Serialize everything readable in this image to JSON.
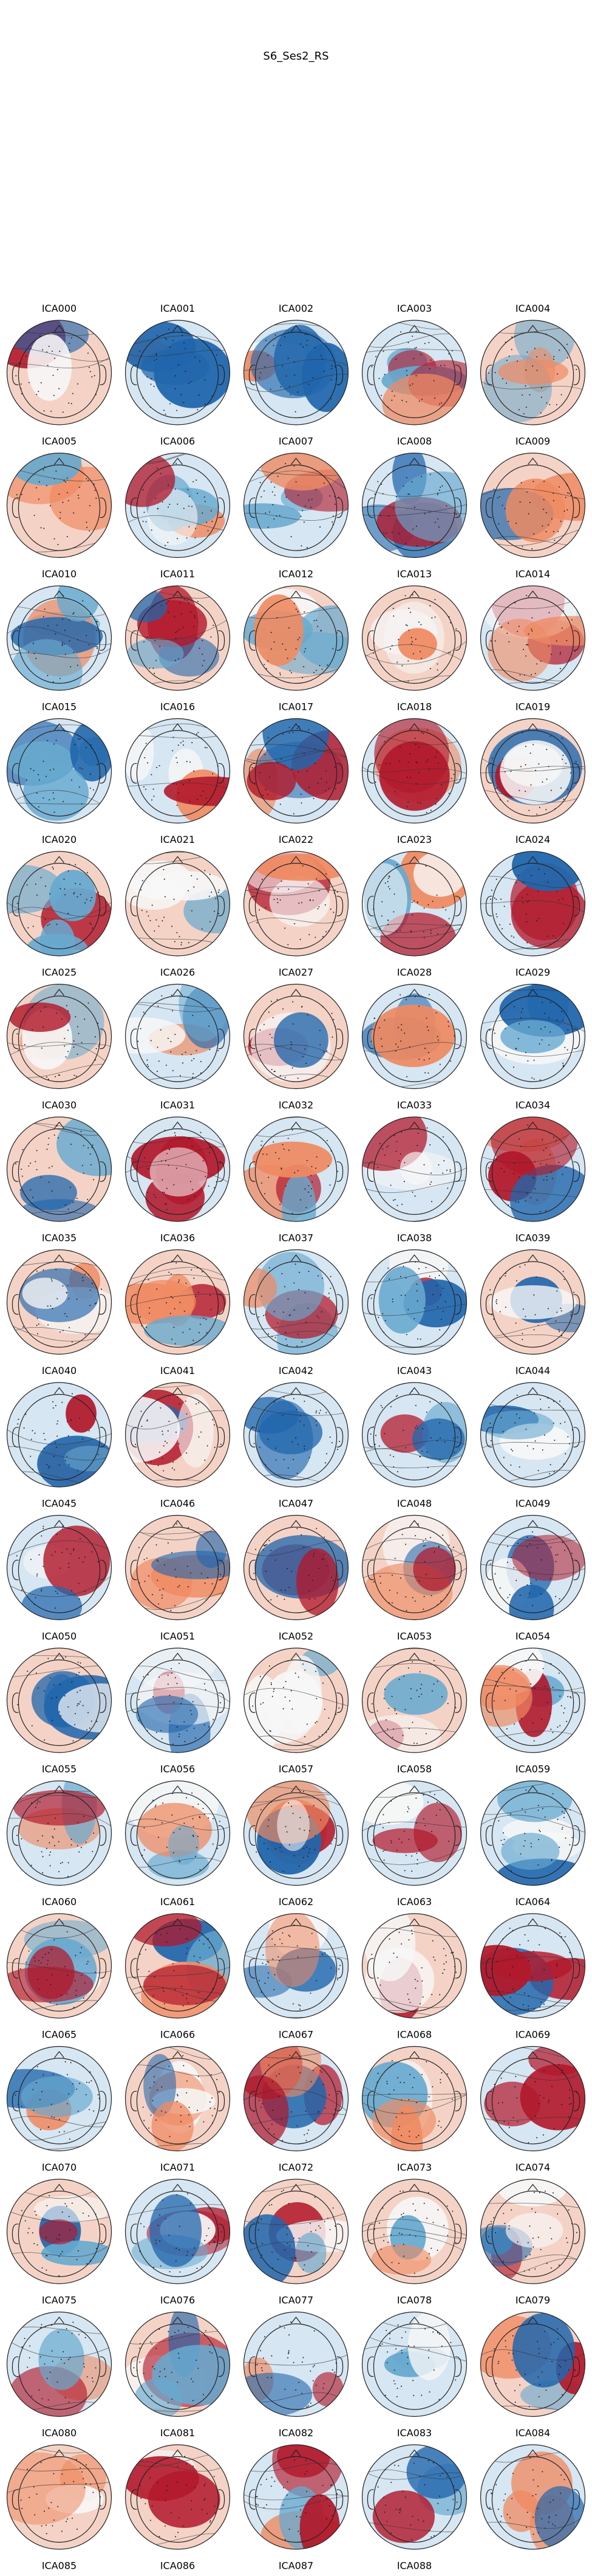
{
  "figure": {
    "title": "S6_Ses2_RS"
  },
  "components": [
    "ICA000",
    "ICA001",
    "ICA002",
    "ICA003",
    "ICA004",
    "ICA005",
    "ICA006",
    "ICA007",
    "ICA008",
    "ICA009",
    "ICA010",
    "ICA011",
    "ICA012",
    "ICA013",
    "ICA014",
    "ICA015",
    "ICA016",
    "ICA017",
    "ICA018",
    "ICA019",
    "ICA020",
    "ICA021",
    "ICA022",
    "ICA023",
    "ICA024",
    "ICA025",
    "ICA026",
    "ICA027",
    "ICA028",
    "ICA029",
    "ICA030",
    "ICA031",
    "ICA032",
    "ICA033",
    "ICA034",
    "ICA035",
    "ICA036",
    "ICA037",
    "ICA038",
    "ICA039",
    "ICA040",
    "ICA041",
    "ICA042",
    "ICA043",
    "ICA044",
    "ICA045",
    "ICA046",
    "ICA047",
    "ICA048",
    "ICA049",
    "ICA050",
    "ICA051",
    "ICA052",
    "ICA053",
    "ICA054",
    "ICA055",
    "ICA056",
    "ICA057",
    "ICA058",
    "ICA059",
    "ICA060",
    "ICA061",
    "ICA062",
    "ICA063",
    "ICA064",
    "ICA065",
    "ICA066",
    "ICA067",
    "ICA068",
    "ICA069",
    "ICA070",
    "ICA071",
    "ICA072",
    "ICA073",
    "ICA074",
    "ICA075",
    "ICA076",
    "ICA077",
    "ICA078",
    "ICA079",
    "ICA080",
    "ICA081",
    "ICA082",
    "ICA083",
    "ICA084",
    "ICA085",
    "ICA086",
    "ICA087",
    "ICA088"
  ],
  "colors": {
    "positive": "#b2182b",
    "positive_light": "#ef8a62",
    "neutral": "#f7f7f7",
    "negative_light": "#67a9cf",
    "negative": "#2166ac",
    "outline": "#222222"
  }
}
